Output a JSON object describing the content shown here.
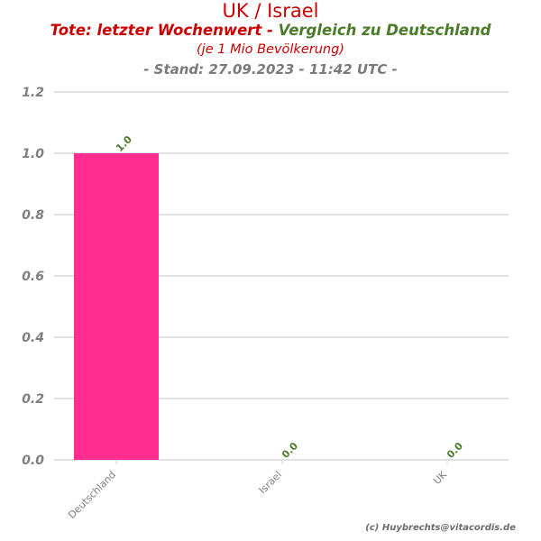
{
  "header": {
    "title": "UK / Israel",
    "subtitle_part1": "Tote: letzter Wochenwert - ",
    "subtitle_part2": "Vergleich zu Deutschland",
    "subtitle_line2": "(je 1 Mio Bevölkerung)",
    "stand": "- Stand: 27.09.2023 - 11:42 UTC -"
  },
  "footer": {
    "credit": "(c) Huybrechts@vitacordis.de"
  },
  "colors": {
    "bar": "#ff2d8f",
    "value_label": "#4a7c2a",
    "axis_text": "#808080",
    "grid": "#d9d9d9",
    "title_red": "#cc0000",
    "title_green": "#4a7c2a"
  },
  "chart_data": {
    "type": "bar",
    "title": "UK / Israel",
    "categories": [
      "Deutschland",
      "Israel",
      "UK"
    ],
    "values": [
      1.0,
      0.0,
      0.0
    ],
    "value_labels": [
      "1.0",
      "0.0",
      "0.0"
    ],
    "ylim": [
      0,
      1.2
    ],
    "yticks": [
      0.0,
      0.2,
      0.4,
      0.6,
      0.8,
      1.0,
      1.2
    ],
    "ytick_labels": [
      "0.0",
      "0.2",
      "0.4",
      "0.6",
      "0.8",
      "1.0",
      "1.2"
    ],
    "xlabel": "",
    "ylabel": "",
    "grid": true,
    "legend": "none"
  }
}
